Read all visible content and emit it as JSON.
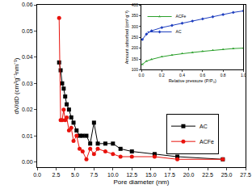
{
  "chart_data": [
    {
      "type": "line",
      "x_label": "Pore diameter (nm)",
      "y_label": "dV/dD (cm³g⁻¹nm⁻¹)",
      "xlim": [
        0,
        27.5
      ],
      "xticks": [
        {
          "value": 0,
          "label": "0.0"
        },
        {
          "value": 2.5,
          "label": "2.5"
        },
        {
          "value": 5,
          "label": "5.0"
        },
        {
          "value": 7.5,
          "label": "7.5"
        },
        {
          "value": 10,
          "label": "10.0"
        },
        {
          "value": 12.5,
          "label": "12.5"
        },
        {
          "value": 15,
          "label": "15.0"
        },
        {
          "value": 17.5,
          "label": "17.5"
        },
        {
          "value": 20,
          "label": "20.0"
        },
        {
          "value": 22.5,
          "label": "22.5"
        },
        {
          "value": 25,
          "label": "25.0"
        },
        {
          "value": 27.5,
          "label": "27.5"
        }
      ],
      "ylim": [
        -0.002,
        0.06
      ],
      "yticks": [
        {
          "value": 0,
          "label": "0.00"
        },
        {
          "value": 0.01,
          "label": "0.01"
        },
        {
          "value": 0.02,
          "label": "0.02"
        },
        {
          "value": 0.03,
          "label": "0.03"
        },
        {
          "value": 0.04,
          "label": "0.04"
        },
        {
          "value": 0.05,
          "label": "0.05"
        },
        {
          "value": 0.06,
          "label": "0.06"
        }
      ],
      "grid": false,
      "legend": "right",
      "series": [
        {
          "name": "AC",
          "color": "#000000",
          "marker": "square",
          "x": [
            2.9,
            3.1,
            3.3,
            3.5,
            3.7,
            3.9,
            4.2,
            4.5,
            4.8,
            5.2,
            5.6,
            6.0,
            6.5,
            7.0,
            7.5,
            8.0,
            9.0,
            10.0,
            11.0,
            12.5,
            15.5,
            18.5,
            24.5
          ],
          "values": [
            0.038,
            0.035,
            0.03,
            0.028,
            0.025,
            0.022,
            0.02,
            0.017,
            0.015,
            0.012,
            0.01,
            0.01,
            0.01,
            0.007,
            0.015,
            0.007,
            0.007,
            0.007,
            0.005,
            0.004,
            0.003,
            0.002,
            0.001
          ]
        },
        {
          "name": "ACFe",
          "color": "#e8120c",
          "marker": "circle",
          "x": [
            2.9,
            3.1,
            3.3,
            3.5,
            3.7,
            3.9,
            4.2,
            4.5,
            4.8,
            5.2,
            5.6,
            6.0,
            6.5,
            7.0,
            7.5,
            8.0,
            9.0,
            10.0,
            11.0,
            12.5,
            15.5,
            18.5,
            24.5
          ],
          "values": [
            0.055,
            0.016,
            0.016,
            0.02,
            0.016,
            0.017,
            0.012,
            0.013,
            0.008,
            0.01,
            0.005,
            0.004,
            0.001,
            0.005,
            0.003,
            0.005,
            0.004,
            0.003,
            0.002,
            0.002,
            0.002,
            0.001,
            0.001
          ]
        }
      ]
    },
    {
      "type": "line",
      "x_label": "Relative pressure (P/P₀)",
      "y_label": "Amount adsorbed (cm³ g⁻¹)",
      "xlim": [
        0,
        1
      ],
      "xticks": [
        {
          "value": 0,
          "label": "0.0"
        },
        {
          "value": 0.2,
          "label": "0.2"
        },
        {
          "value": 0.4,
          "label": "0.4"
        },
        {
          "value": 0.6,
          "label": "0.6"
        },
        {
          "value": 0.8,
          "label": "0.8"
        },
        {
          "value": 1,
          "label": "1.0"
        }
      ],
      "ylim": [
        100,
        400
      ],
      "yticks": [
        100,
        150,
        200,
        250,
        300,
        350,
        400
      ],
      "grid": false,
      "legend": "upper left",
      "series": [
        {
          "name": "ACFe",
          "color": "#2ca02c",
          "marker": "triangle-up",
          "x": [
            0.01,
            0.05,
            0.1,
            0.2,
            0.3,
            0.4,
            0.5,
            0.6,
            0.7,
            0.8,
            0.9,
            1.0
          ],
          "values": [
            125,
            140,
            148,
            160,
            168,
            175,
            180,
            185,
            190,
            194,
            198,
            200
          ]
        },
        {
          "name": "AC",
          "color": "#1f3fbf",
          "marker": "diamond",
          "x": [
            0.01,
            0.05,
            0.1,
            0.2,
            0.3,
            0.4,
            0.5,
            0.6,
            0.7,
            0.8,
            0.9,
            1.0
          ],
          "values": [
            240,
            265,
            280,
            295,
            305,
            315,
            325,
            335,
            345,
            355,
            365,
            372
          ]
        }
      ]
    }
  ]
}
